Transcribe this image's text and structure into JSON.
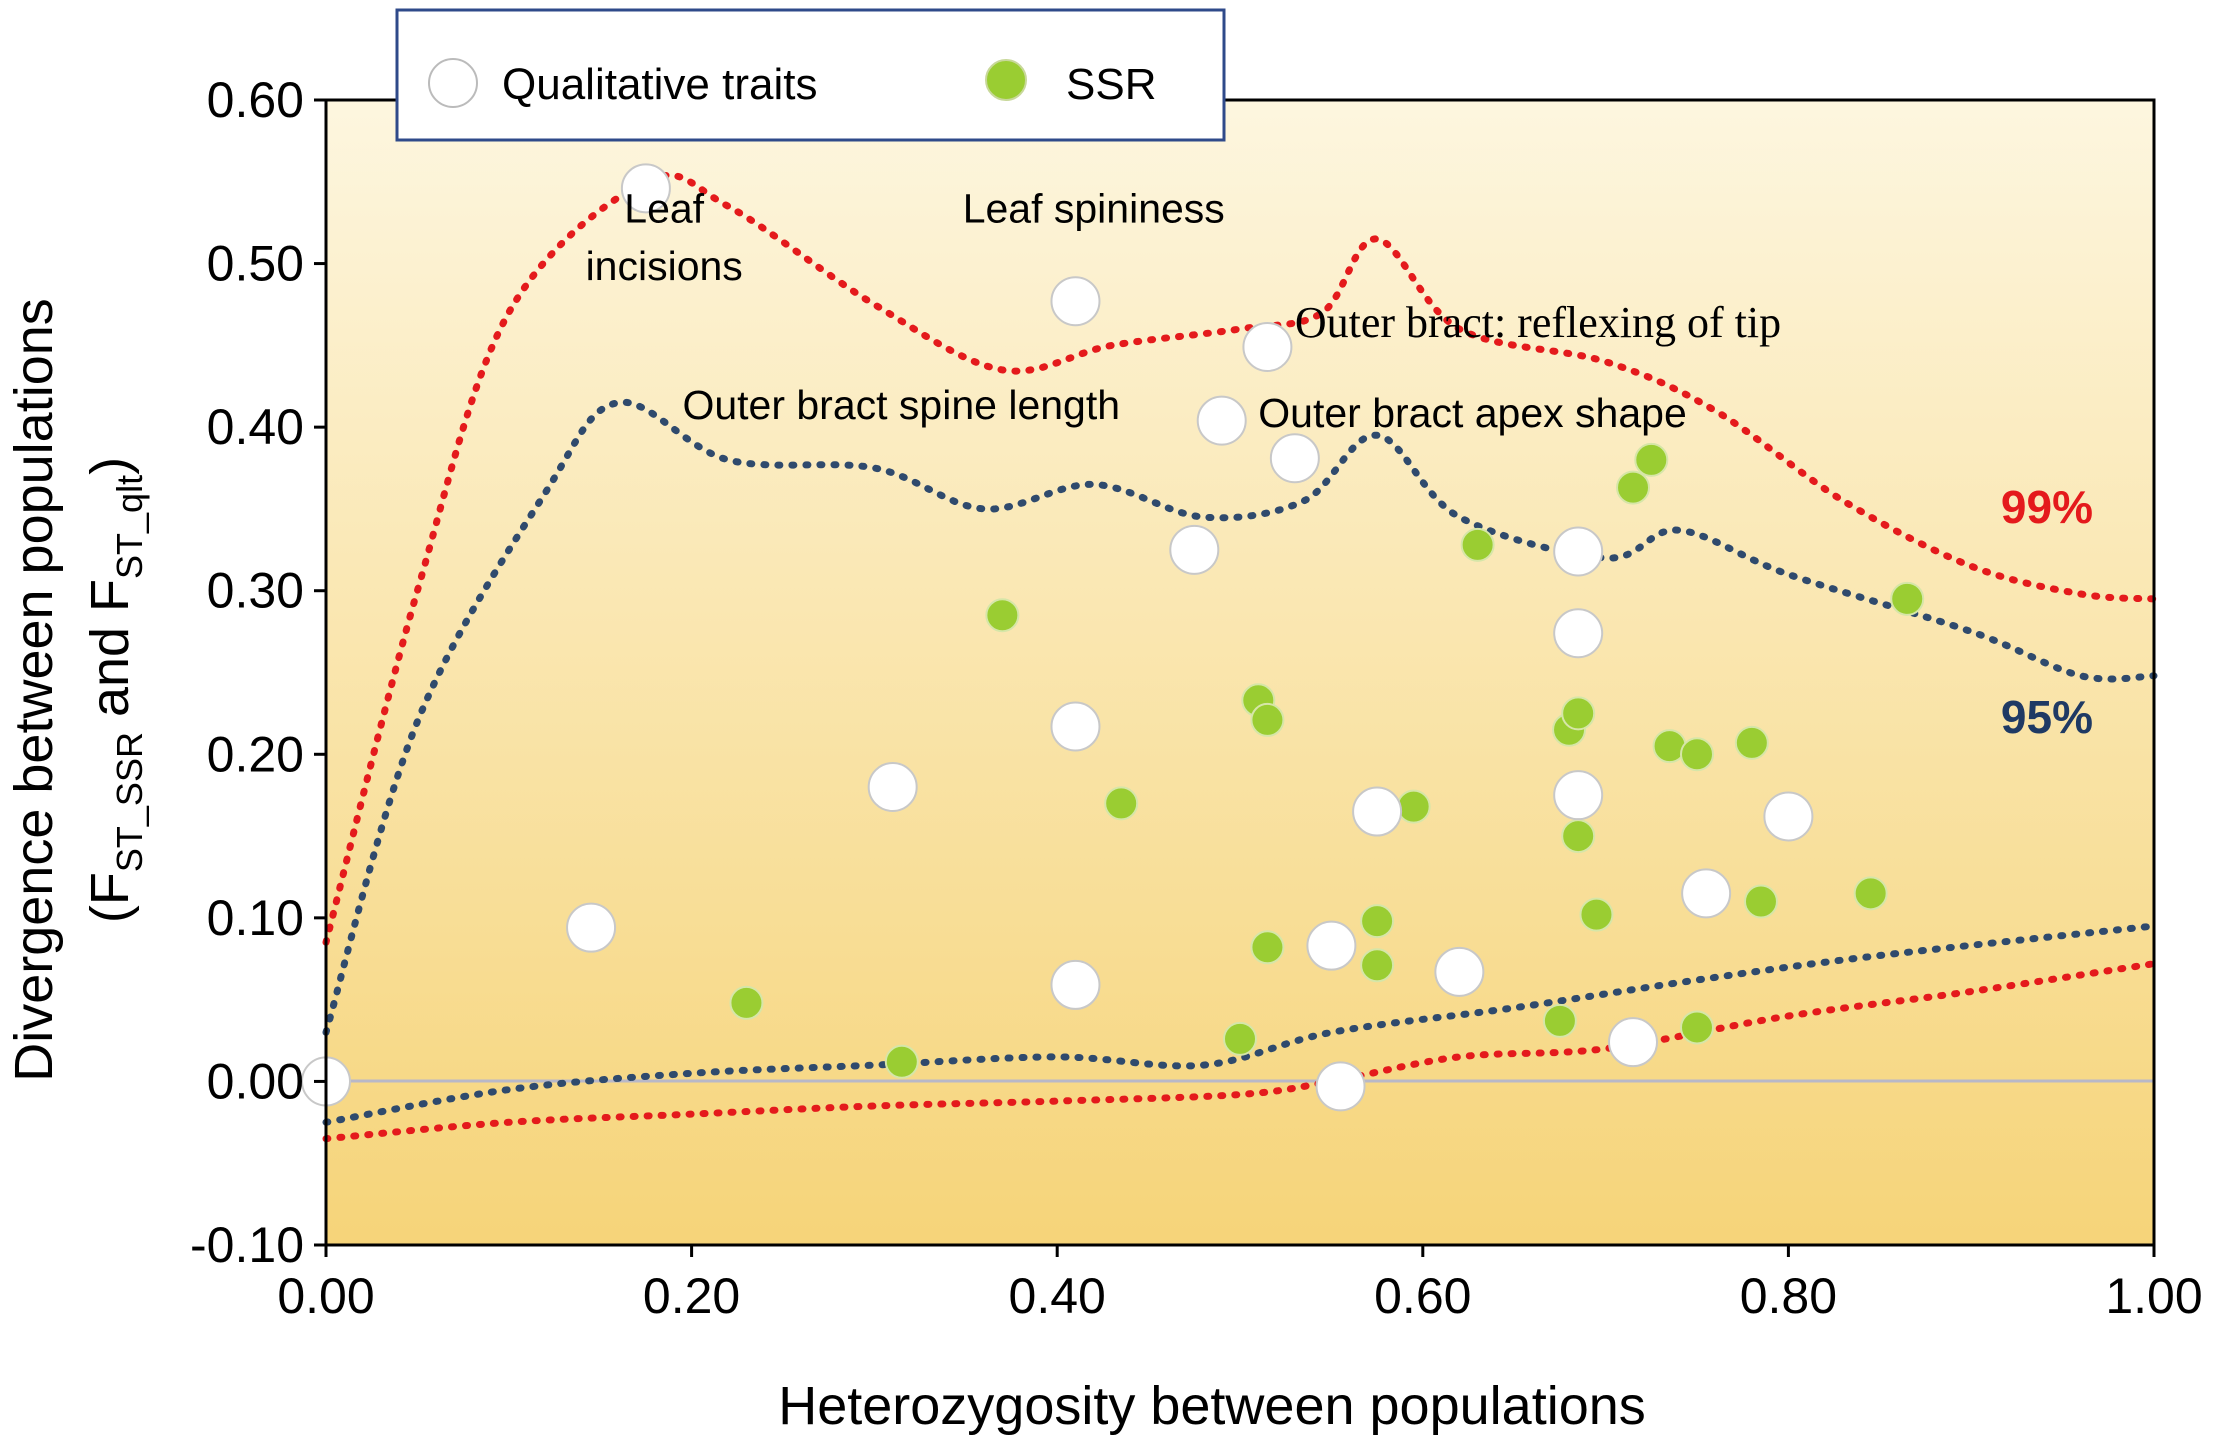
{
  "chart_data": {
    "type": "scatter",
    "xlabel": "Heterozygosity between populations",
    "ylabel": {
      "line1": "Divergence between populations",
      "line2_prefix": "(F",
      "line2_sub1": "ST_SSR",
      "line2_mid": " and F",
      "line2_sub2": "ST_qlt",
      "line2_suffix": ")"
    },
    "xlim": [
      0.0,
      1.0
    ],
    "ylim": [
      -0.1,
      0.6
    ],
    "x_ticks": [
      0.0,
      0.2,
      0.4,
      0.6,
      0.8,
      1.0
    ],
    "x_tick_labels": [
      "0.00",
      "0.20",
      "0.40",
      "0.60",
      "0.80",
      "1.00"
    ],
    "y_ticks": [
      0.6,
      0.5,
      0.4,
      0.3,
      0.2,
      0.1,
      0.0,
      -0.1
    ],
    "y_tick_labels": [
      "0.60",
      "0.50",
      "0.40",
      "0.30",
      "0.20",
      "0.10",
      "0.00",
      "-0.10"
    ],
    "legend": {
      "position": "top-left",
      "entries": [
        {
          "label": "Qualitative traits",
          "color": "#ffffff"
        },
        {
          "label": "SSR",
          "color": "#9ACD32"
        }
      ]
    },
    "series": [
      {
        "name": "Qualitative traits",
        "color": "#ffffff",
        "points": [
          [
            0.0,
            0.0
          ],
          [
            0.145,
            0.094
          ],
          [
            0.175,
            0.546
          ],
          [
            0.31,
            0.18
          ],
          [
            0.41,
            0.059
          ],
          [
            0.41,
            0.217
          ],
          [
            0.41,
            0.477
          ],
          [
            0.475,
            0.325
          ],
          [
            0.49,
            0.404
          ],
          [
            0.515,
            0.449
          ],
          [
            0.53,
            0.381
          ],
          [
            0.55,
            0.083
          ],
          [
            0.555,
            -0.003
          ],
          [
            0.575,
            0.165
          ],
          [
            0.62,
            0.067
          ],
          [
            0.685,
            0.324
          ],
          [
            0.685,
            0.274
          ],
          [
            0.685,
            0.175
          ],
          [
            0.715,
            0.024
          ],
          [
            0.755,
            0.115
          ],
          [
            0.8,
            0.162
          ]
        ]
      },
      {
        "name": "SSR",
        "color": "#9ACD32",
        "points": [
          [
            0.23,
            0.048
          ],
          [
            0.315,
            0.012
          ],
          [
            0.37,
            0.285
          ],
          [
            0.435,
            0.17
          ],
          [
            0.5,
            0.026
          ],
          [
            0.51,
            0.233
          ],
          [
            0.515,
            0.221
          ],
          [
            0.515,
            0.082
          ],
          [
            0.575,
            0.071
          ],
          [
            0.575,
            0.098
          ],
          [
            0.595,
            0.168
          ],
          [
            0.63,
            0.328
          ],
          [
            0.675,
            0.037
          ],
          [
            0.68,
            0.215
          ],
          [
            0.685,
            0.225
          ],
          [
            0.685,
            0.15
          ],
          [
            0.695,
            0.102
          ],
          [
            0.715,
            0.363
          ],
          [
            0.725,
            0.38
          ],
          [
            0.735,
            0.205
          ],
          [
            0.75,
            0.2
          ],
          [
            0.75,
            0.033
          ],
          [
            0.78,
            0.207
          ],
          [
            0.785,
            0.11
          ],
          [
            0.845,
            0.115
          ],
          [
            0.865,
            0.295
          ]
        ]
      }
    ],
    "envelopes": [
      {
        "name": "99% upper",
        "label": "99%",
        "color": "#e41a1c",
        "points": [
          [
            0.0,
            0.085
          ],
          [
            0.05,
            0.3
          ],
          [
            0.1,
            0.47
          ],
          [
            0.175,
            0.55
          ],
          [
            0.22,
            0.535
          ],
          [
            0.3,
            0.475
          ],
          [
            0.37,
            0.435
          ],
          [
            0.43,
            0.45
          ],
          [
            0.5,
            0.46
          ],
          [
            0.545,
            0.47
          ],
          [
            0.575,
            0.515
          ],
          [
            0.62,
            0.46
          ],
          [
            0.7,
            0.44
          ],
          [
            0.76,
            0.41
          ],
          [
            0.83,
            0.355
          ],
          [
            0.9,
            0.315
          ],
          [
            0.96,
            0.298
          ],
          [
            1.0,
            0.295
          ]
        ]
      },
      {
        "name": "95% upper",
        "label": "95%",
        "color": "#2f4a6d",
        "points": [
          [
            0.0,
            0.03
          ],
          [
            0.05,
            0.22
          ],
          [
            0.12,
            0.36
          ],
          [
            0.16,
            0.415
          ],
          [
            0.22,
            0.38
          ],
          [
            0.3,
            0.375
          ],
          [
            0.36,
            0.35
          ],
          [
            0.42,
            0.365
          ],
          [
            0.48,
            0.345
          ],
          [
            0.535,
            0.355
          ],
          [
            0.575,
            0.395
          ],
          [
            0.62,
            0.345
          ],
          [
            0.7,
            0.32
          ],
          [
            0.74,
            0.337
          ],
          [
            0.8,
            0.31
          ],
          [
            0.9,
            0.275
          ],
          [
            0.96,
            0.248
          ],
          [
            1.0,
            0.248
          ]
        ]
      },
      {
        "name": "95% lower",
        "label": "",
        "color": "#2f4a6d",
        "points": [
          [
            0.0,
            -0.025
          ],
          [
            0.1,
            -0.005
          ],
          [
            0.2,
            0.005
          ],
          [
            0.3,
            0.01
          ],
          [
            0.4,
            0.015
          ],
          [
            0.48,
            0.01
          ],
          [
            0.55,
            0.03
          ],
          [
            0.65,
            0.045
          ],
          [
            0.75,
            0.062
          ],
          [
            0.85,
            0.077
          ],
          [
            1.0,
            0.095
          ]
        ]
      },
      {
        "name": "99% lower",
        "label": "",
        "color": "#e41a1c",
        "points": [
          [
            0.0,
            -0.035
          ],
          [
            0.1,
            -0.025
          ],
          [
            0.2,
            -0.02
          ],
          [
            0.3,
            -0.015
          ],
          [
            0.4,
            -0.012
          ],
          [
            0.5,
            -0.008
          ],
          [
            0.55,
            0.0
          ],
          [
            0.62,
            0.015
          ],
          [
            0.7,
            0.02
          ],
          [
            0.8,
            0.04
          ],
          [
            0.9,
            0.055
          ],
          [
            1.0,
            0.072
          ]
        ]
      }
    ],
    "annotations": [
      {
        "text": "Leaf",
        "x": 0.185,
        "y": 0.525,
        "style": "sans"
      },
      {
        "text": "incisions",
        "x": 0.185,
        "y": 0.49,
        "style": "sans"
      },
      {
        "text": "Leaf spininess",
        "x": 0.42,
        "y": 0.525,
        "style": "sans"
      },
      {
        "text": "Outer bract: reflexing of tip",
        "x": 0.53,
        "y": 0.455,
        "style": "serif"
      },
      {
        "text": "Outer bract spine length",
        "x": 0.195,
        "y": 0.405,
        "style": "sans"
      },
      {
        "text": "Outer bract apex shape",
        "x": 0.51,
        "y": 0.4,
        "style": "sans"
      }
    ],
    "background": {
      "top": "#fdf6df",
      "bottom": "#f6d479"
    }
  }
}
